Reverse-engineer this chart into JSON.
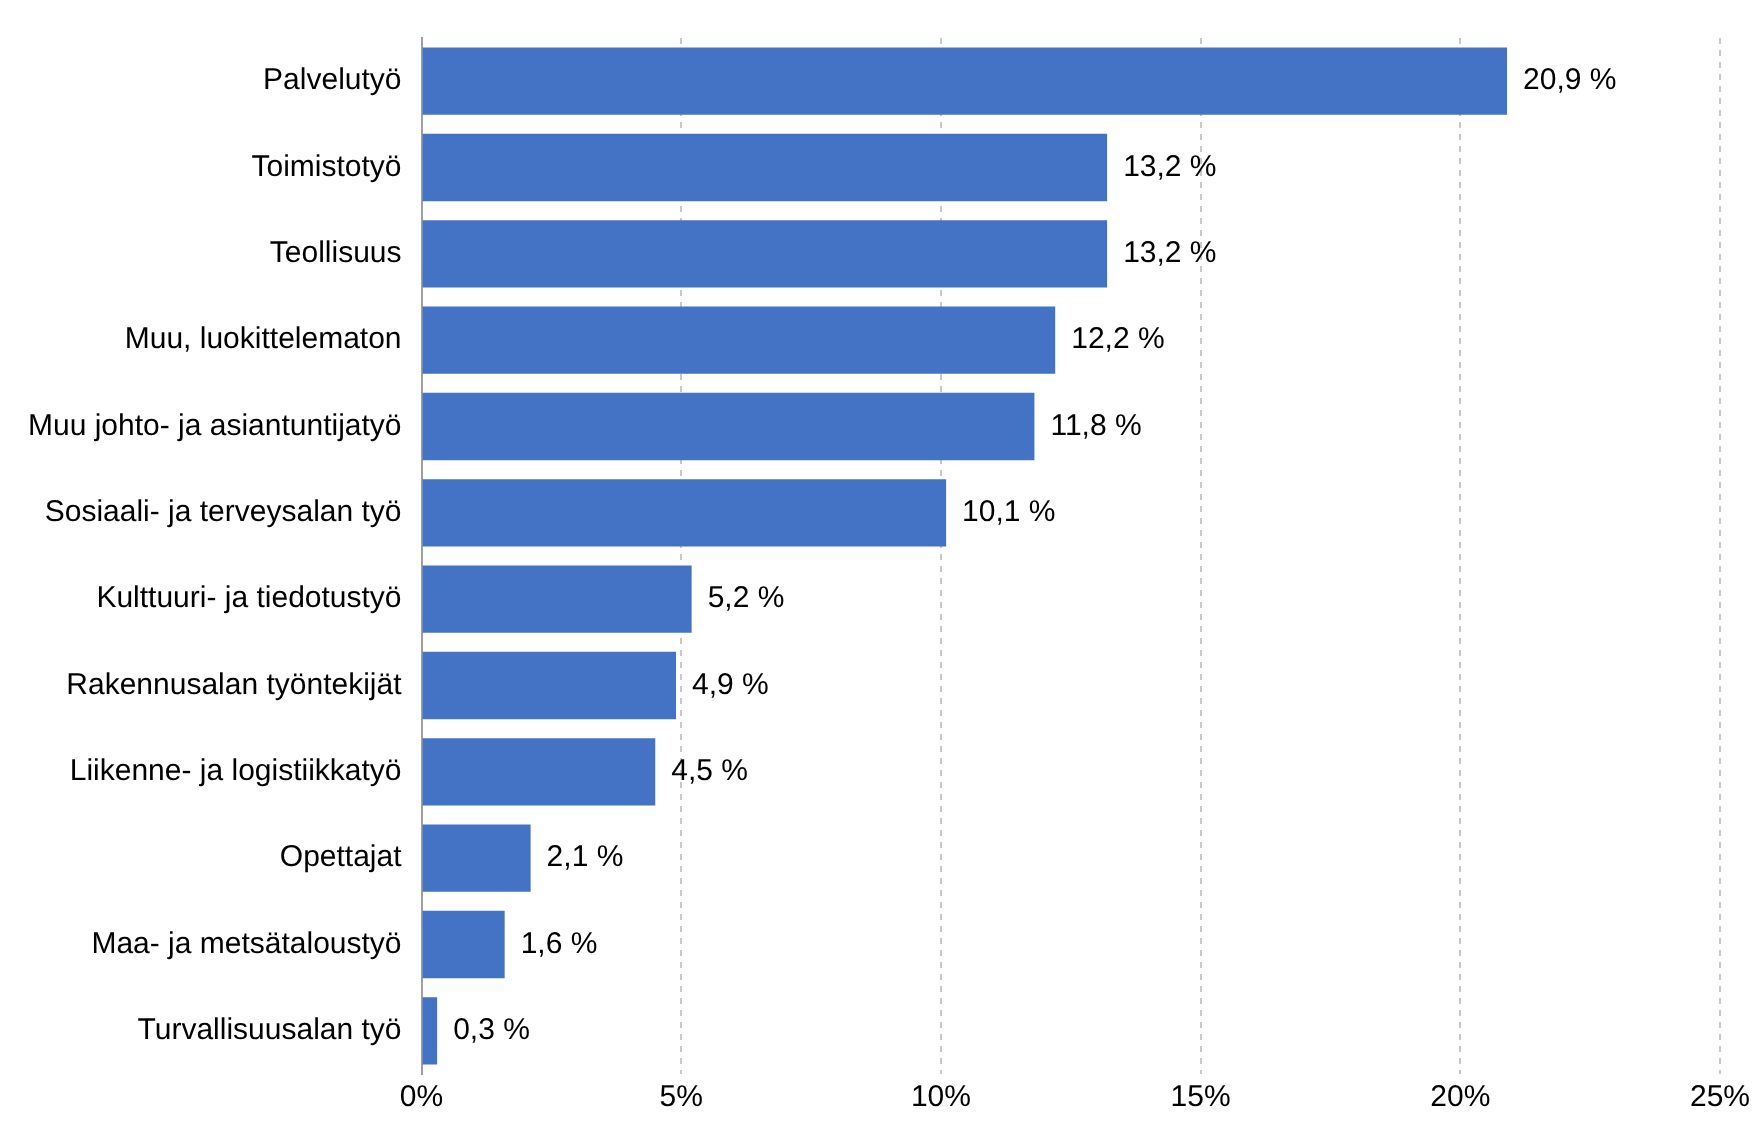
{
  "chart_data": {
    "type": "bar",
    "orientation": "horizontal",
    "categories": [
      "Palvelutyö",
      "Toimistotyö",
      "Teollisuus",
      "Muu, luokittelematon",
      "Muu johto- ja asiantuntijatyö",
      "Sosiaali- ja terveysalan työ",
      "Kulttuuri- ja tiedotustyö",
      "Rakennusalan työntekijät",
      "Liikenne- ja logistiikkatyö",
      "Opettajat",
      "Maa- ja metsätaloustyö",
      "Turvallisuusalan työ"
    ],
    "values": [
      20.9,
      13.2,
      13.2,
      12.2,
      11.8,
      10.1,
      5.2,
      4.9,
      4.5,
      2.1,
      1.6,
      0.3
    ],
    "value_labels": [
      "20,9 %",
      "13,2 %",
      "13,2 %",
      "12,2 %",
      "11,8 %",
      "10,1 %",
      "5,2 %",
      "4,9 %",
      "4,5 %",
      "2,1 %",
      "1,6 %",
      "0,3 %"
    ],
    "color": "#4472c4",
    "xlim": [
      0,
      25
    ],
    "xticks": [
      {
        "value": 0,
        "label": "0%"
      },
      {
        "value": 5,
        "label": "5%"
      },
      {
        "value": 10,
        "label": "10%"
      },
      {
        "value": 15,
        "label": "15%"
      },
      {
        "value": 20,
        "label": "20%"
      },
      {
        "value": 25,
        "label": "25%"
      }
    ],
    "grid": "x"
  }
}
